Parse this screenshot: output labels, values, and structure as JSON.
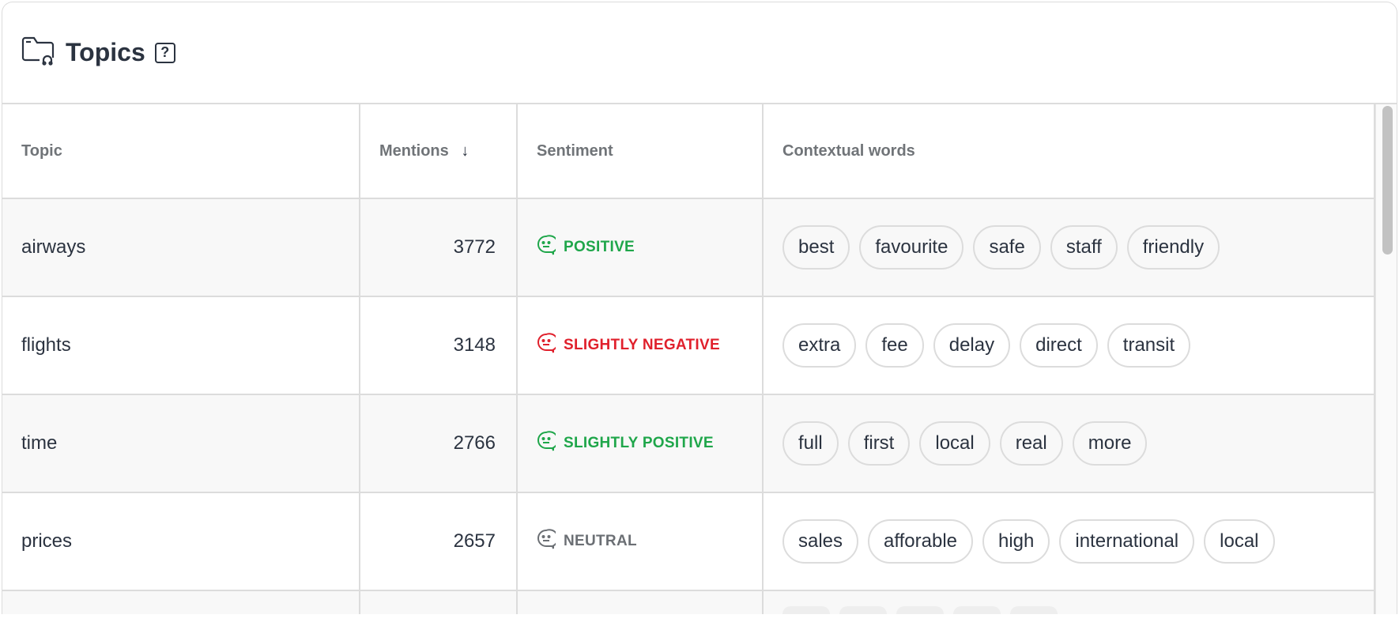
{
  "header": {
    "title": "Topics",
    "help_label": "?"
  },
  "columns": {
    "topic": "Topic",
    "mentions": "Mentions",
    "sort_icon": "↓",
    "sentiment": "Sentiment",
    "words": "Contextual words"
  },
  "colors": {
    "positive": "#1fa64a",
    "negative": "#e0202c",
    "neutral": "#6b6f74"
  },
  "rows": [
    {
      "topic": "airways",
      "mentions": "3772",
      "sentiment": "POSITIVE",
      "tone": "positive",
      "words": [
        "best",
        "favourite",
        "safe",
        "staff",
        "friendly"
      ]
    },
    {
      "topic": "flights",
      "mentions": "3148",
      "sentiment": "SLIGHTLY NEGATIVE",
      "tone": "negative",
      "words": [
        "extra",
        "fee",
        "delay",
        "direct",
        "transit"
      ]
    },
    {
      "topic": "time",
      "mentions": "2766",
      "sentiment": "SLIGHTLY POSITIVE",
      "tone": "positive",
      "words": [
        "full",
        "first",
        "local",
        "real",
        "more"
      ]
    },
    {
      "topic": "prices",
      "mentions": "2657",
      "sentiment": "NEUTRAL",
      "tone": "neutral",
      "words": [
        "sales",
        "afforable",
        "high",
        "international",
        "local"
      ]
    }
  ]
}
